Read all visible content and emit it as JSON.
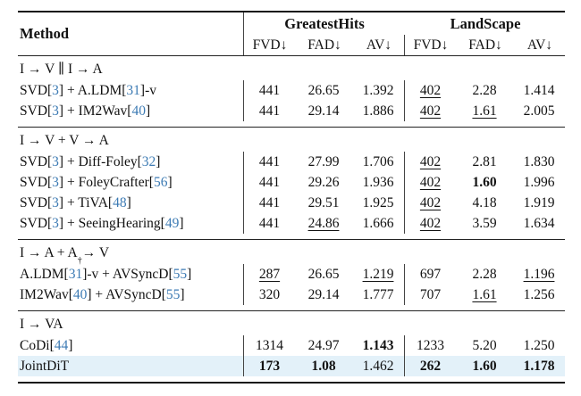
{
  "colors": {
    "citation": "#3d7bb4",
    "highlight_row_bg": "#e3f1f9",
    "rule": "#151515"
  },
  "header": {
    "method_label": "Method",
    "groups": [
      {
        "label": "GreatestHits",
        "columns": [
          "FVD↓",
          "FAD↓",
          "AV↓"
        ]
      },
      {
        "label": "LandScape",
        "columns": [
          "FVD↓",
          "FAD↓",
          "AV↓"
        ]
      }
    ]
  },
  "sections": [
    {
      "label_parts": [
        {
          "t": "I → V ∥ I → A"
        }
      ],
      "rows": [
        {
          "method_parts": [
            {
              "t": "SVD["
            },
            {
              "t": "3",
              "cite": true
            },
            {
              "t": "] + A.LDM["
            },
            {
              "t": "31",
              "cite": true
            },
            {
              "t": "]-v"
            }
          ],
          "cells": [
            {
              "v": "441"
            },
            {
              "v": "26.65"
            },
            {
              "v": "1.392"
            },
            {
              "v": "402",
              "u": true
            },
            {
              "v": "2.28"
            },
            {
              "v": "1.414"
            }
          ]
        },
        {
          "method_parts": [
            {
              "t": "SVD["
            },
            {
              "t": "3",
              "cite": true
            },
            {
              "t": "] + IM2Wav["
            },
            {
              "t": "40",
              "cite": true
            },
            {
              "t": "]"
            }
          ],
          "cells": [
            {
              "v": "441"
            },
            {
              "v": "29.14"
            },
            {
              "v": "1.886"
            },
            {
              "v": "402",
              "u": true
            },
            {
              "v": "1.61",
              "u": true
            },
            {
              "v": "2.005"
            }
          ]
        }
      ]
    },
    {
      "label_parts": [
        {
          "t": "I → V + V → A"
        }
      ],
      "rows": [
        {
          "method_parts": [
            {
              "t": "SVD["
            },
            {
              "t": "3",
              "cite": true
            },
            {
              "t": "] + Diff-Foley["
            },
            {
              "t": "32",
              "cite": true
            },
            {
              "t": "]"
            }
          ],
          "cells": [
            {
              "v": "441"
            },
            {
              "v": "27.99"
            },
            {
              "v": "1.706"
            },
            {
              "v": "402",
              "u": true
            },
            {
              "v": "2.81"
            },
            {
              "v": "1.830"
            }
          ]
        },
        {
          "method_parts": [
            {
              "t": "SVD["
            },
            {
              "t": "3",
              "cite": true
            },
            {
              "t": "] + FoleyCrafter["
            },
            {
              "t": "56",
              "cite": true
            },
            {
              "t": "]"
            }
          ],
          "cells": [
            {
              "v": "441"
            },
            {
              "v": "29.26"
            },
            {
              "v": "1.936"
            },
            {
              "v": "402",
              "u": true
            },
            {
              "v": "1.60",
              "b": true
            },
            {
              "v": "1.996"
            }
          ]
        },
        {
          "method_parts": [
            {
              "t": "SVD["
            },
            {
              "t": "3",
              "cite": true
            },
            {
              "t": "] + TiVA["
            },
            {
              "t": "48",
              "cite": true
            },
            {
              "t": "]"
            }
          ],
          "cells": [
            {
              "v": "441"
            },
            {
              "v": "29.51"
            },
            {
              "v": "1.925"
            },
            {
              "v": "402",
              "u": true
            },
            {
              "v": "4.18"
            },
            {
              "v": "1.919"
            }
          ]
        },
        {
          "method_parts": [
            {
              "t": "SVD["
            },
            {
              "t": "3",
              "cite": true
            },
            {
              "t": "] + SeeingHearing["
            },
            {
              "t": "49",
              "cite": true
            },
            {
              "t": "]"
            }
          ],
          "cells": [
            {
              "v": "441"
            },
            {
              "v": "24.86",
              "u": true
            },
            {
              "v": "1.666"
            },
            {
              "v": "402",
              "u": true
            },
            {
              "v": "3.59"
            },
            {
              "v": "1.634"
            }
          ]
        }
      ]
    },
    {
      "label_parts": [
        {
          "t": "I → A + A"
        },
        {
          "t": "†",
          "sup": true
        },
        {
          "t": " → V"
        }
      ],
      "rows": [
        {
          "method_parts": [
            {
              "t": "A.LDM["
            },
            {
              "t": "31",
              "cite": true
            },
            {
              "t": "]-v + AVSyncD["
            },
            {
              "t": "55",
              "cite": true
            },
            {
              "t": "]"
            }
          ],
          "cells": [
            {
              "v": "287",
              "u": true
            },
            {
              "v": "26.65"
            },
            {
              "v": "1.219",
              "u": true
            },
            {
              "v": "697"
            },
            {
              "v": "2.28"
            },
            {
              "v": "1.196",
              "u": true
            }
          ]
        },
        {
          "method_parts": [
            {
              "t": "IM2Wav["
            },
            {
              "t": "40",
              "cite": true
            },
            {
              "t": "] + AVSyncD["
            },
            {
              "t": "55",
              "cite": true
            },
            {
              "t": "]"
            }
          ],
          "cells": [
            {
              "v": "320"
            },
            {
              "v": "29.14"
            },
            {
              "v": "1.777"
            },
            {
              "v": "707"
            },
            {
              "v": "1.61",
              "u": true
            },
            {
              "v": "1.256"
            }
          ]
        }
      ]
    },
    {
      "label_parts": [
        {
          "t": "I → VA"
        }
      ],
      "rows": [
        {
          "method_parts": [
            {
              "t": "CoDi["
            },
            {
              "t": "44",
              "cite": true
            },
            {
              "t": "]"
            }
          ],
          "cells": [
            {
              "v": "1314"
            },
            {
              "v": "24.97"
            },
            {
              "v": "1.143",
              "b": true
            },
            {
              "v": "1233"
            },
            {
              "v": "5.20"
            },
            {
              "v": "1.250"
            }
          ]
        },
        {
          "highlight": true,
          "method_parts": [
            {
              "t": "JointDiT"
            }
          ],
          "cells": [
            {
              "v": "173",
              "b": true
            },
            {
              "v": "1.08",
              "b": true
            },
            {
              "v": "1.462"
            },
            {
              "v": "262",
              "b": true
            },
            {
              "v": "1.60",
              "b": true
            },
            {
              "v": "1.178",
              "b": true
            }
          ]
        }
      ]
    }
  ]
}
